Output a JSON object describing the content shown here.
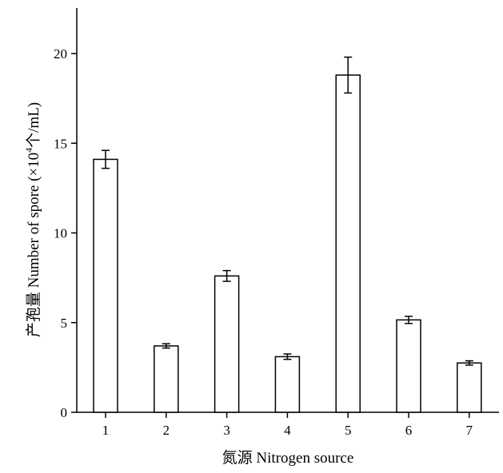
{
  "chart_data": {
    "type": "bar",
    "title": "",
    "xlabel": "氮源 Nitrogen source",
    "ylabel_main": "产孢量 Number of spore (×10",
    "ylabel_exp": "4",
    "ylabel_tail": "个/mL)",
    "categories": [
      "1",
      "2",
      "3",
      "4",
      "5",
      "6",
      "7"
    ],
    "values": [
      14.1,
      3.7,
      7.6,
      3.1,
      18.8,
      5.15,
      2.75
    ],
    "errors": [
      0.5,
      0.12,
      0.3,
      0.15,
      1.0,
      0.2,
      0.12
    ],
    "yticks": [
      "0",
      "5",
      "10",
      "15",
      "20"
    ],
    "ylim": [
      0,
      22
    ],
    "grid": false,
    "colors": {
      "bar_fill": "#ffffff",
      "bar_stroke": "#000000",
      "axis": "#000000"
    }
  }
}
